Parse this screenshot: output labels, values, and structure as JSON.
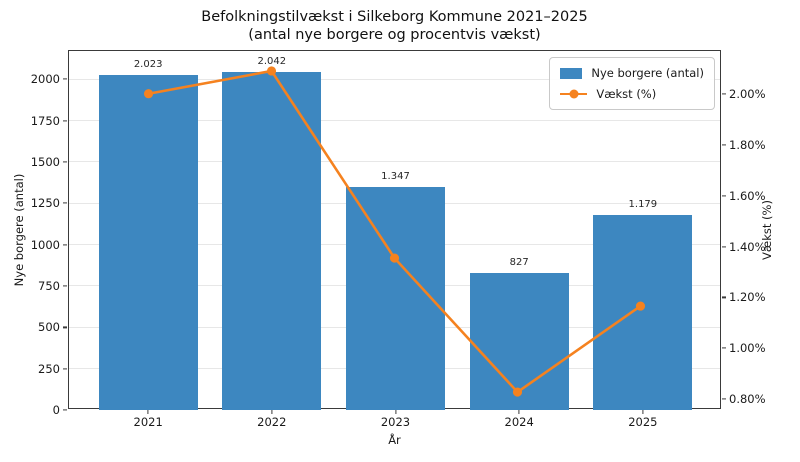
{
  "chart_data": {
    "type": "combo",
    "title": "Befolkningstilvækst i Silkeborg Kommune 2021–2025",
    "subtitle": "(antal nye borgere og procentvis vækst)",
    "xlabel": "År",
    "categories": [
      "2021",
      "2022",
      "2023",
      "2024",
      "2025"
    ],
    "series": [
      {
        "name": "Nye borgere (antal)",
        "type": "bar",
        "axis": "left",
        "color": "#3d87c0",
        "values": [
          2023,
          2042,
          1347,
          827,
          1179
        ],
        "value_labels": [
          "2.023",
          "2.042",
          "1.347",
          "827",
          "1.179"
        ]
      },
      {
        "name": "Vækst (%)",
        "type": "line",
        "axis": "right",
        "color": "#f5821f",
        "values": [
          2.0,
          2.09,
          1.35,
          0.82,
          1.16
        ]
      }
    ],
    "left_axis": {
      "label": "Nye borgere (antal)",
      "ticks": [
        0,
        250,
        500,
        750,
        1000,
        1250,
        1500,
        1750,
        2000
      ],
      "lim": [
        0,
        2171
      ]
    },
    "right_axis": {
      "label": "Vækst (%)",
      "ticks": [
        0.8,
        1.0,
        1.2,
        1.4,
        1.6,
        1.8,
        2.0
      ],
      "lim": [
        0.757,
        2.169
      ],
      "format": "percent"
    },
    "grid": "horizontal-left-ticks",
    "legend_position": "upper right",
    "colors": {
      "bar": "#3d87c0",
      "line": "#f5821f",
      "grid": "#e7e7e7",
      "spine": "#3a3a3a"
    }
  }
}
